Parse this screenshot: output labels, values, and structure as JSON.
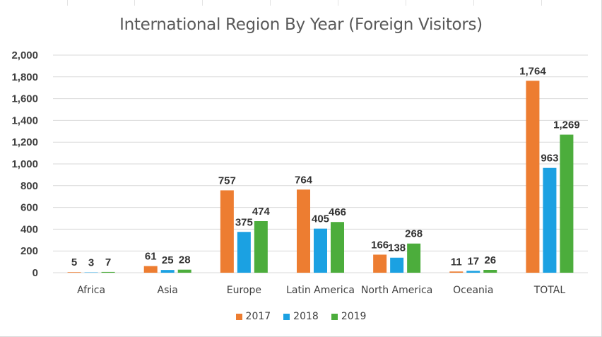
{
  "chart_data": {
    "type": "bar",
    "title": "International Region By Year (Foreign Visitors)",
    "categories": [
      "Africa",
      "Asia",
      "Europe",
      "Latin America",
      "North America",
      "Oceania",
      "TOTAL"
    ],
    "series": [
      {
        "name": "2017",
        "color": "#ed7d31",
        "values": [
          5,
          61,
          757,
          764,
          166,
          11,
          1764
        ]
      },
      {
        "name": "2018",
        "color": "#1ba1e2",
        "values": [
          3,
          25,
          375,
          405,
          138,
          17,
          963
        ]
      },
      {
        "name": "2019",
        "color": "#4cad3c",
        "values": [
          7,
          28,
          474,
          466,
          268,
          26,
          1269
        ]
      }
    ],
    "ylim": [
      0,
      2000
    ],
    "yticks": [
      0,
      200,
      400,
      600,
      800,
      1000,
      1200,
      1400,
      1600,
      1800,
      2000
    ],
    "ytick_labels": [
      "0",
      "200",
      "400",
      "600",
      "800",
      "1,000",
      "1,200",
      "1,400",
      "1,600",
      "1,800",
      "2,000"
    ],
    "grid": true,
    "legend": "bottom",
    "data_labels": [
      [
        "5",
        "61",
        "757",
        "764",
        "166",
        "11",
        "1,764"
      ],
      [
        "3",
        "25",
        "375",
        "405",
        "138",
        "17",
        "963"
      ],
      [
        "7",
        "28",
        "474",
        "466",
        "268",
        "26",
        "1,269"
      ]
    ],
    "gridline_color": "#d9d9d9"
  }
}
